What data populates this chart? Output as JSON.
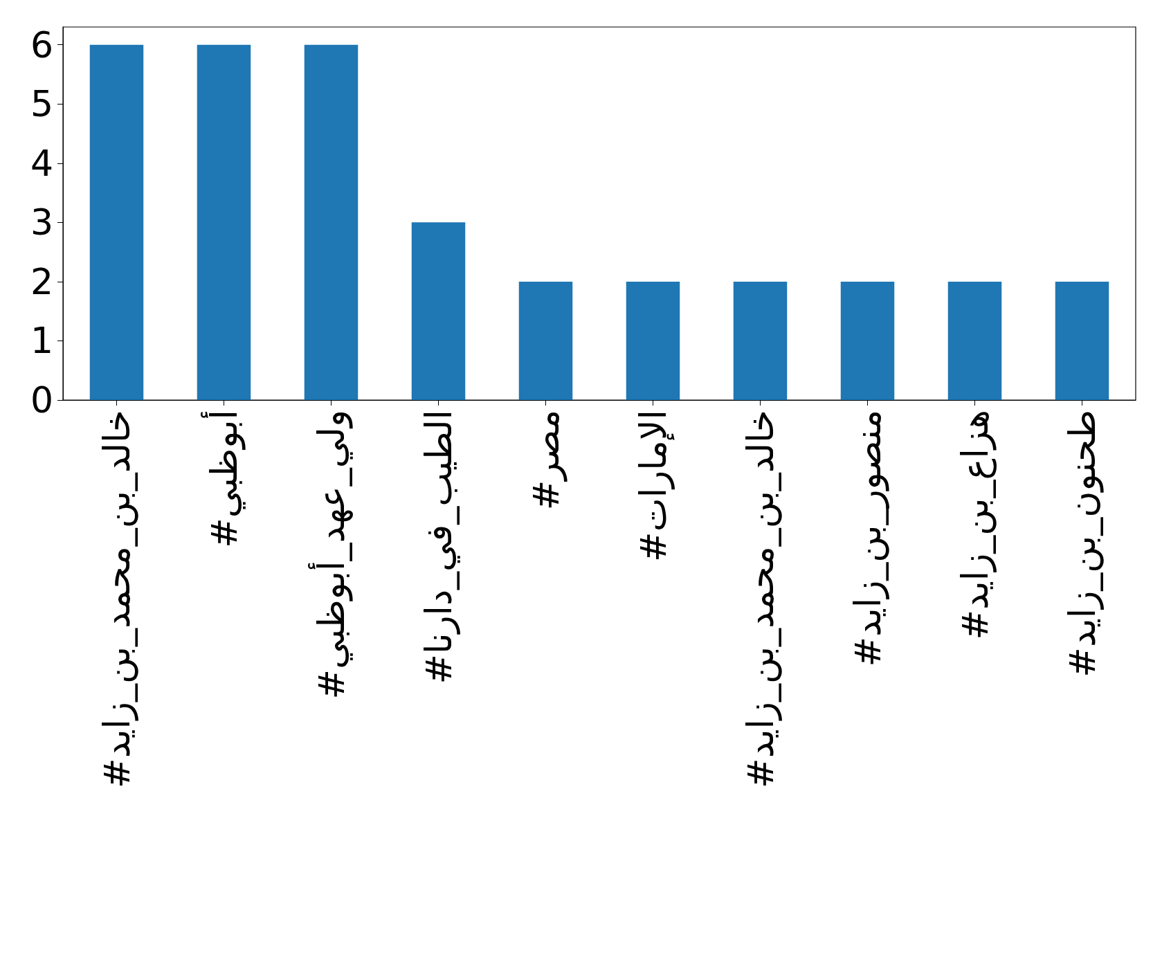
{
  "chart_data": {
    "type": "bar",
    "categories": [
      "#خالد_بن_محمد_بن_زايد",
      "#أبوظبي",
      "#ولي_عهد_أبوظبي",
      "#الطيب_في_دارنا",
      "#مصر",
      "#الإمارات",
      "#خالد_بن_محمد_بن_زايد",
      "#منصور_بن_زايد",
      "#هزاع_بن_زايد",
      "#طحنون_بن_زايد"
    ],
    "values": [
      6,
      6,
      6,
      3,
      2,
      2,
      2,
      2,
      2,
      2
    ],
    "color": "#1f77b4",
    "ylim": [
      0,
      6.3
    ],
    "yticks": [
      0,
      1,
      2,
      3,
      4,
      5,
      6
    ],
    "grid": false
  }
}
